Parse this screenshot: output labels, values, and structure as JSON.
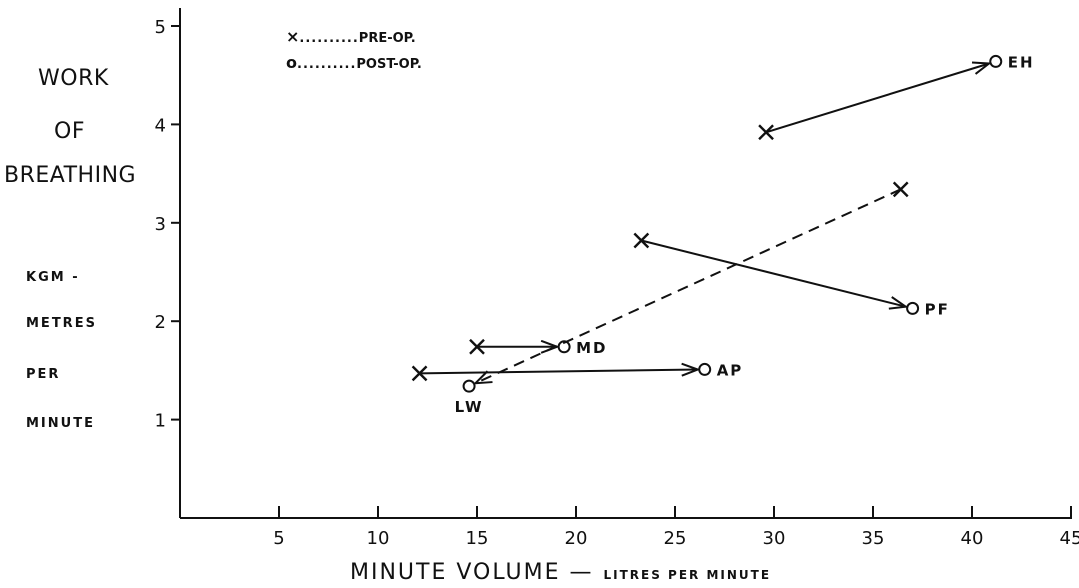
{
  "chart_data": {
    "type": "scatter",
    "xlabel_main": "MINUTE VOLUME —",
    "xlabel_sub": "LITRES PER MINUTE",
    "ylabel_main": [
      "WORK",
      "OF",
      "BREATHING"
    ],
    "ylabel_units": [
      "KGM -",
      "METRES",
      "PER",
      "MINUTE"
    ],
    "xlim": [
      0,
      45
    ],
    "ylim": [
      0,
      5
    ],
    "xticks": [
      "5",
      "10",
      "15",
      "20",
      "25",
      "30",
      "35",
      "40",
      "45"
    ],
    "yticks": [
      "1",
      "2",
      "3",
      "4",
      "5"
    ],
    "legend": [
      {
        "symbol": "×",
        "dots": "..........",
        "label": "PRE-OP."
      },
      {
        "symbol": "o",
        "dots": "..........",
        "label": "POST-OP."
      }
    ],
    "series": [
      {
        "name": "EH",
        "pre": [
          29.6,
          3.92
        ],
        "post": [
          41.2,
          4.64
        ],
        "line": "solid"
      },
      {
        "name": "PF",
        "pre": [
          23.3,
          2.82
        ],
        "post": [
          37.0,
          2.13
        ],
        "line": "solid"
      },
      {
        "name": "MD",
        "pre": [
          15.0,
          1.74
        ],
        "post": [
          19.4,
          1.74
        ],
        "line": "solid"
      },
      {
        "name": "AP",
        "pre": [
          12.1,
          1.47
        ],
        "post": [
          26.5,
          1.51
        ],
        "line": "solid"
      },
      {
        "name": "LW",
        "pre": [
          36.4,
          3.34
        ],
        "post": [
          14.6,
          1.34
        ],
        "line": "dashed"
      }
    ]
  }
}
